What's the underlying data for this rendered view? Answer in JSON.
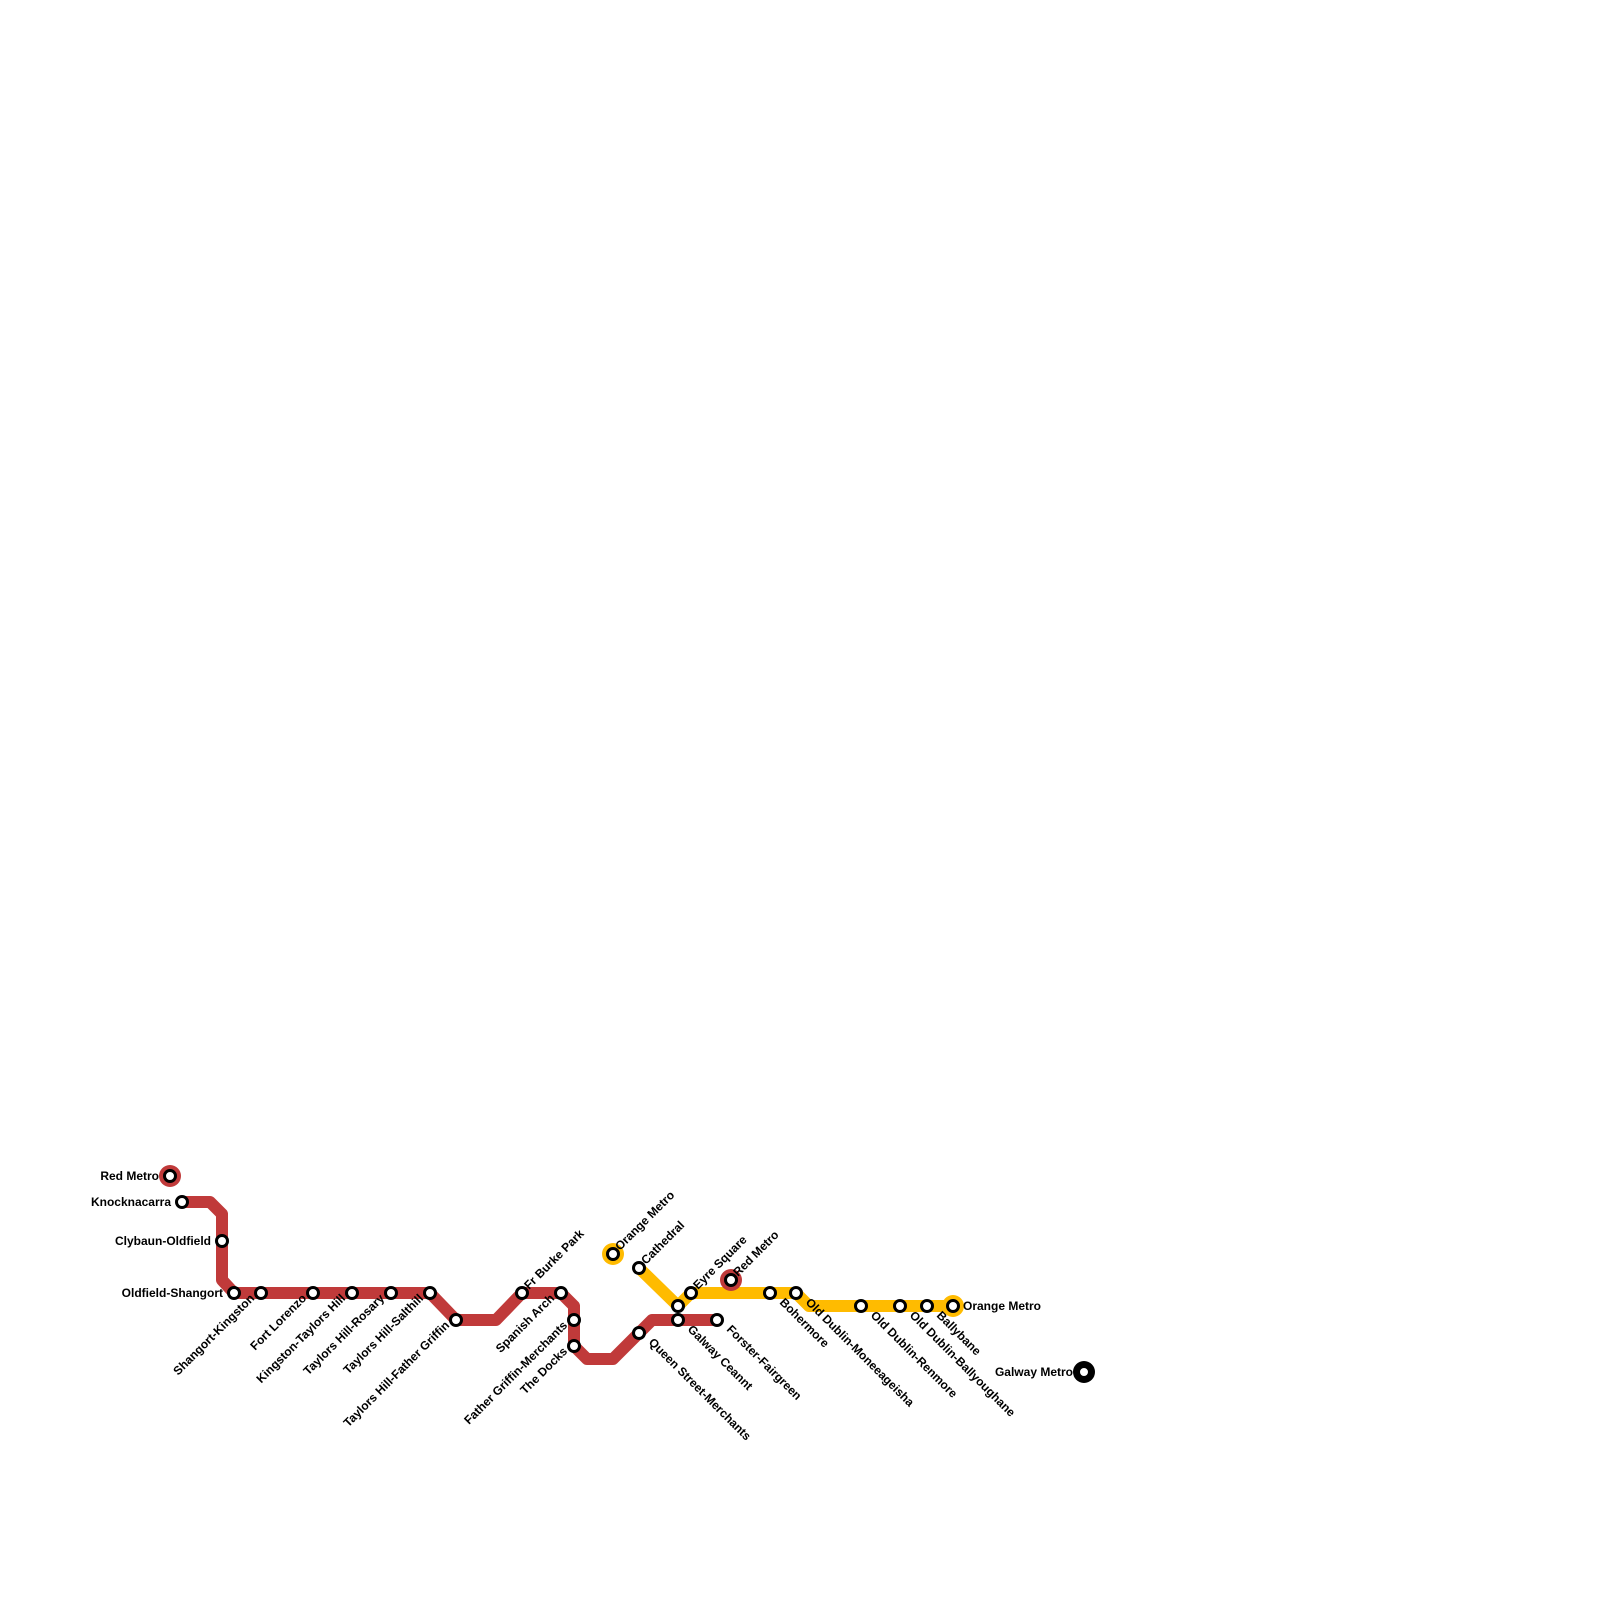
{
  "lines": {
    "red": {
      "color": "#c03a3a"
    },
    "orange": {
      "color": "#ffbb00"
    },
    "galway": {
      "color": "#000000"
    }
  },
  "terminals": {
    "red_west": "Red Metro",
    "red_east": "Red Metro",
    "orange_west": "Orange Metro",
    "orange_east": "Orange Metro",
    "galway": "Galway Metro"
  },
  "red_stations": [
    "Knocknacarra",
    "Clybaun-Oldfield",
    "Oldfield-Shangort",
    "Shangort-Kingston",
    "Fort Lorenzo",
    "Kingston-Taylors Hill",
    "Taylors Hill-Rosary",
    "Taylors Hill-Salthill",
    "Taylors Hill-Father Griffin",
    "Fr Burke Park",
    "Spanish Arch",
    "Father Griffin-Merchants",
    "The Docks",
    "Queen Street-Merchants",
    "Galway Ceannt",
    "Forster-Fairgreen"
  ],
  "orange_stations": [
    "Cathedral",
    "Eyre Square",
    "Bohermore",
    "Old Dublin-Moneeageisha",
    "Old Dublin-Renmore",
    "Old Dublin-Ballyoughane",
    "Ballybane"
  ]
}
